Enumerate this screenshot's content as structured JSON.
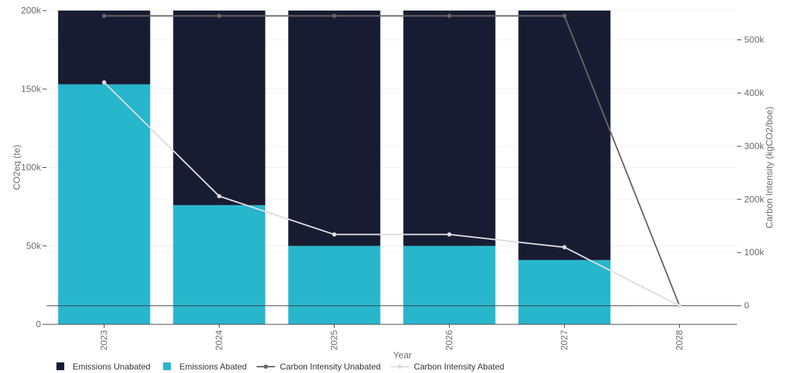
{
  "chart_data": {
    "type": "bar",
    "barmode": "stack",
    "categories": [
      "2023",
      "2024",
      "2025",
      "2026",
      "2027",
      "2028"
    ],
    "series": [
      {
        "name": "Emissions Unabated",
        "kind": "bar",
        "axis": "left",
        "color": "#181c33",
        "values": [
          47000,
          124000,
          150000,
          150000,
          159000,
          0
        ]
      },
      {
        "name": "Emissions Abated",
        "kind": "bar",
        "axis": "left",
        "color": "#27b6cc",
        "values": [
          153000,
          76000,
          50000,
          50000,
          41000,
          0
        ]
      },
      {
        "name": "Carbon Intensity Unabated",
        "kind": "line",
        "axis": "right",
        "color": "#666666",
        "values": [
          545000,
          545000,
          545000,
          545000,
          545000,
          0
        ]
      },
      {
        "name": "Carbon Intensity Abated",
        "kind": "line",
        "axis": "right",
        "color": "#dddddd",
        "values": [
          420000,
          206000,
          134000,
          134000,
          110000,
          0
        ]
      }
    ],
    "xlabel": "Year",
    "ylabel": "CO2eq (te)",
    "y2label": "Carbon Intensity (kgCO2/boe)",
    "ylim": [
      0,
      200000
    ],
    "y2lim": [
      -35000,
      555000
    ],
    "yticks": [
      0,
      50000,
      100000,
      150000,
      200000
    ],
    "ytick_labels": [
      "0",
      "50k",
      "100k",
      "150k",
      "200k"
    ],
    "y2ticks": [
      0,
      100000,
      200000,
      300000,
      400000,
      500000
    ],
    "y2tick_labels": [
      "0",
      "100k",
      "200k",
      "300k",
      "400k",
      "500k"
    ],
    "grid": true,
    "legend_position": "bottom-left"
  }
}
